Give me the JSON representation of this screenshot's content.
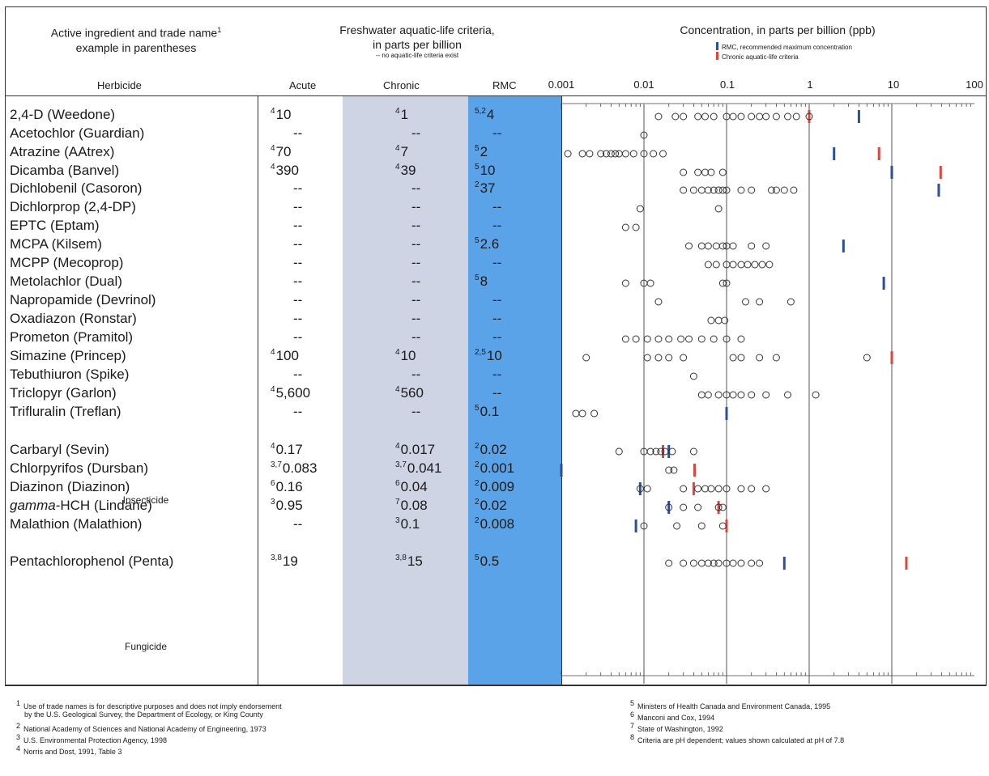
{
  "header": {
    "col1_line1": "Active ingredient and trade name",
    "col1_sup": "1",
    "col1_line2": "example in parentheses",
    "criteria_line1": "Freshwater aquatic-life criteria,",
    "criteria_line2": "in parts per billion",
    "criteria_note": "-- no aquatic-life criteria exist",
    "conc_title": "Concentration, in parts per billion (ppb)",
    "legend_rmc": "RMC, recommended maximum concentration",
    "legend_chronic": "Chronic aquatic-life criteria",
    "sub_herbicide": "Herbicide",
    "sub_acute": "Acute",
    "sub_chronic": "Chronic",
    "sub_rmc": "RMC"
  },
  "colors": {
    "rmc": "#2b4fa0",
    "chronic": "#e0443a",
    "rmc_shade": "#5ba3e8",
    "chronic_shade": "#cfd4e4"
  },
  "groups": {
    "insecticide": "Insecticide",
    "fungicide": "Fungicide"
  },
  "rows": [
    {
      "name": "2,4-D (Weedone)",
      "acute_sup": "4",
      "acute": "10",
      "chronic_sup": "4",
      "chronic": "1",
      "rmc_sup": "5,2",
      "rmc": "4"
    },
    {
      "name": "Acetochlor (Guardian)",
      "acute_sup": "",
      "acute": "--",
      "chronic_sup": "",
      "chronic": "--",
      "rmc_sup": "",
      "rmc": "--"
    },
    {
      "name": "Atrazine (AAtrex)",
      "acute_sup": "4",
      "acute": "70",
      "chronic_sup": "4",
      "chronic": "7",
      "rmc_sup": "5",
      "rmc": "2"
    },
    {
      "name": "Dicamba (Banvel)",
      "acute_sup": "4",
      "acute": "390",
      "chronic_sup": "4",
      "chronic": "39",
      "rmc_sup": "5",
      "rmc": "10"
    },
    {
      "name": "Dichlobenil (Casoron)",
      "acute_sup": "",
      "acute": "--",
      "chronic_sup": "",
      "chronic": "--",
      "rmc_sup": "2",
      "rmc": "37"
    },
    {
      "name": "Dichlorprop (2,4-DP)",
      "acute_sup": "",
      "acute": "--",
      "chronic_sup": "",
      "chronic": "--",
      "rmc_sup": "",
      "rmc": "--"
    },
    {
      "name": "EPTC (Eptam)",
      "acute_sup": "",
      "acute": "--",
      "chronic_sup": "",
      "chronic": "--",
      "rmc_sup": "",
      "rmc": "--"
    },
    {
      "name": "MCPA (Kilsem)",
      "acute_sup": "",
      "acute": "--",
      "chronic_sup": "",
      "chronic": "--",
      "rmc_sup": "5",
      "rmc": "2.6"
    },
    {
      "name": "MCPP (Mecoprop)",
      "acute_sup": "",
      "acute": "--",
      "chronic_sup": "",
      "chronic": "--",
      "rmc_sup": "",
      "rmc": "--"
    },
    {
      "name": "Metolachlor (Dual)",
      "acute_sup": "",
      "acute": "--",
      "chronic_sup": "",
      "chronic": "--",
      "rmc_sup": "5",
      "rmc": "8"
    },
    {
      "name": "Napropamide (Devrinol)",
      "acute_sup": "",
      "acute": "--",
      "chronic_sup": "",
      "chronic": "--",
      "rmc_sup": "",
      "rmc": "--"
    },
    {
      "name": "Oxadiazon (Ronstar)",
      "acute_sup": "",
      "acute": "--",
      "chronic_sup": "",
      "chronic": "--",
      "rmc_sup": "",
      "rmc": "--"
    },
    {
      "name": "Prometon (Pramitol)",
      "acute_sup": "",
      "acute": "--",
      "chronic_sup": "",
      "chronic": "--",
      "rmc_sup": "",
      "rmc": "--"
    },
    {
      "name": "Simazine (Princep)",
      "acute_sup": "4",
      "acute": "100",
      "chronic_sup": "4",
      "chronic": "10",
      "rmc_sup": "2,5",
      "rmc": "10"
    },
    {
      "name": "Tebuthiuron (Spike)",
      "acute_sup": "",
      "acute": "--",
      "chronic_sup": "",
      "chronic": "--",
      "rmc_sup": "",
      "rmc": "--"
    },
    {
      "name": "Triclopyr (Garlon)",
      "acute_sup": "4",
      "acute": "5,600",
      "chronic_sup": "4",
      "chronic": "560",
      "rmc_sup": "",
      "rmc": "--"
    },
    {
      "name": "Trifluralin (Treflan)",
      "acute_sup": "",
      "acute": "--",
      "chronic_sup": "",
      "chronic": "--",
      "rmc_sup": "5",
      "rmc": "0.1"
    },
    {
      "name": "Carbaryl (Sevin)",
      "acute_sup": "4",
      "acute": "0.17",
      "chronic_sup": "4",
      "chronic": "0.017",
      "rmc_sup": "2",
      "rmc": "0.02"
    },
    {
      "name": "Chlorpyrifos (Dursban)",
      "acute_sup": "3,7",
      "acute": "0.083",
      "chronic_sup": "3,7",
      "chronic": "0.041",
      "rmc_sup": "2",
      "rmc": "0.001"
    },
    {
      "name": "Diazinon (Diazinon)",
      "acute_sup": "6",
      "acute": "0.16",
      "chronic_sup": "6",
      "chronic": "0.04",
      "rmc_sup": "2",
      "rmc": "0.009"
    },
    {
      "name_italic": "gamma",
      "name": "-HCH (Lindane)",
      "acute_sup": "3",
      "acute": "0.95",
      "chronic_sup": "7",
      "chronic": "0.08",
      "rmc_sup": "2",
      "rmc": "0.02"
    },
    {
      "name": "Malathion (Malathion)",
      "acute_sup": "",
      "acute": "--",
      "chronic_sup": "3",
      "chronic": "0.1",
      "rmc_sup": "2",
      "rmc": "0.008"
    },
    {
      "name": "Pentachlorophenol (Penta)",
      "acute_sup": "3,8",
      "acute": "19",
      "chronic_sup": "3,8",
      "chronic": "15",
      "rmc_sup": "5",
      "rmc": "0.5"
    }
  ],
  "footnotes_left": [
    {
      "num": "1",
      "text": "Use of trade names is for descriptive purposes and does not imply endorsement"
    },
    {
      "num": "",
      "text": "by the U.S. Geological Survey, the Department of Ecology, or King County"
    },
    {
      "num": "2",
      "text": "National Academy of Sciences and National Academy of Engineering, 1973"
    },
    {
      "num": "3",
      "text": "U.S. Environmental Protection Agency, 1998"
    },
    {
      "num": "4",
      "text": "Norris and Dost, 1991, Table 3"
    }
  ],
  "footnotes_right": [
    {
      "num": "5",
      "text": "Ministers of Health Canada and Environment Canada, 1995"
    },
    {
      "num": "6",
      "text": "Manconi and Cox, 1994"
    },
    {
      "num": "7",
      "text": "State of Washington, 1992"
    },
    {
      "num": "8",
      "text": "Criteria are pH dependent; values shown calculated at pH of 7.8"
    }
  ],
  "chart_data": {
    "type": "scatter",
    "title": "Concentration, in parts per billion (ppb)",
    "xscale": "log",
    "xlim": [
      0.001,
      100
    ],
    "xticks": [
      "0.001",
      "0.01",
      "0.1",
      "1",
      "10",
      "100"
    ],
    "legend": [
      "RMC, recommended maximum concentration",
      "Chronic aquatic-life criteria"
    ],
    "series": [
      {
        "label": "2,4-D (Weedone)",
        "points": [
          0.015,
          0.024,
          0.03,
          0.045,
          0.055,
          0.07,
          0.1,
          0.12,
          0.15,
          0.2,
          0.25,
          0.3,
          0.4,
          0.55,
          0.7,
          1.0
        ],
        "rmc": 4,
        "chronic": 1
      },
      {
        "label": "Acetochlor (Guardian)",
        "points": [
          0.01
        ],
        "rmc": null,
        "chronic": null
      },
      {
        "label": "Atrazine (AAtrex)",
        "points": [
          0.0012,
          0.0018,
          0.0022,
          0.003,
          0.0035,
          0.004,
          0.0045,
          0.005,
          0.006,
          0.0075,
          0.01,
          0.013,
          0.017
        ],
        "rmc": 2,
        "chronic": 7
      },
      {
        "label": "Dicamba (Banvel)",
        "points": [
          0.03,
          0.045,
          0.055,
          0.065,
          0.09
        ],
        "rmc": 10,
        "chronic": 39
      },
      {
        "label": "Dichlobenil (Casoron)",
        "points": [
          0.03,
          0.04,
          0.05,
          0.06,
          0.07,
          0.08,
          0.09,
          0.1,
          0.15,
          0.2,
          0.35,
          0.4,
          0.5,
          0.65
        ],
        "rmc": 37,
        "chronic": null
      },
      {
        "label": "Dichlorprop (2,4-DP)",
        "points": [
          0.009,
          0.08
        ],
        "rmc": null,
        "chronic": null
      },
      {
        "label": "EPTC (Eptam)",
        "points": [
          0.006,
          0.008
        ],
        "rmc": null,
        "chronic": null
      },
      {
        "label": "MCPA (Kilsem)",
        "points": [
          0.035,
          0.05,
          0.06,
          0.075,
          0.09,
          0.1,
          0.12,
          0.2,
          0.3
        ],
        "rmc": 2.6,
        "chronic": null
      },
      {
        "label": "MCPP (Mecoprop)",
        "points": [
          0.06,
          0.075,
          0.1,
          0.12,
          0.15,
          0.18,
          0.22,
          0.27,
          0.33
        ],
        "rmc": null,
        "chronic": null
      },
      {
        "label": "Metolachlor (Dual)",
        "points": [
          0.006,
          0.01,
          0.012,
          0.09,
          0.1
        ],
        "rmc": 8,
        "chronic": null
      },
      {
        "label": "Napropamide (Devrinol)",
        "points": [
          0.015,
          0.17,
          0.25,
          0.6
        ],
        "rmc": null,
        "chronic": null
      },
      {
        "label": "Oxadiazon (Ronstar)",
        "points": [
          0.065,
          0.08,
          0.095
        ],
        "rmc": null,
        "chronic": null
      },
      {
        "label": "Prometon (Pramitol)",
        "points": [
          0.006,
          0.008,
          0.011,
          0.015,
          0.02,
          0.028,
          0.035,
          0.05,
          0.07,
          0.1,
          0.15
        ],
        "rmc": null,
        "chronic": null
      },
      {
        "label": "Simazine (Princep)",
        "points": [
          0.002,
          0.011,
          0.015,
          0.02,
          0.03,
          0.12,
          0.15,
          0.25,
          0.4,
          5
        ],
        "rmc": 10,
        "chronic": 10
      },
      {
        "label": "Tebuthiuron (Spike)",
        "points": [
          0.04
        ],
        "rmc": null,
        "chronic": null
      },
      {
        "label": "Triclopyr (Garlon)",
        "points": [
          0.05,
          0.06,
          0.08,
          0.1,
          0.12,
          0.15,
          0.2,
          0.3,
          0.55,
          1.2
        ],
        "rmc": null,
        "chronic": 560
      },
      {
        "label": "Trifluralin (Treflan)",
        "points": [
          0.0015,
          0.0018,
          0.0025
        ],
        "rmc": 0.1,
        "chronic": null
      },
      {
        "label": "Carbaryl (Sevin)",
        "points": [
          0.005,
          0.01,
          0.012,
          0.014,
          0.016,
          0.018,
          0.022,
          0.04
        ],
        "rmc": 0.02,
        "chronic": 0.017
      },
      {
        "label": "Chlorpyrifos (Dursban)",
        "points": [
          0.02,
          0.023
        ],
        "rmc": 0.001,
        "chronic": 0.041
      },
      {
        "label": "Diazinon (Diazinon)",
        "points": [
          0.009,
          0.011,
          0.03,
          0.045,
          0.055,
          0.065,
          0.08,
          0.1,
          0.15,
          0.2,
          0.3
        ],
        "rmc": 0.009,
        "chronic": 0.04
      },
      {
        "label": "gamma-HCH (Lindane)",
        "points": [
          0.02,
          0.03,
          0.045,
          0.08,
          0.09
        ],
        "rmc": 0.02,
        "chronic": 0.08
      },
      {
        "label": "Malathion (Malathion)",
        "points": [
          0.01,
          0.025,
          0.05,
          0.09
        ],
        "rmc": 0.008,
        "chronic": 0.1
      },
      {
        "label": "Pentachlorophenol (Penta)",
        "points": [
          0.02,
          0.03,
          0.04,
          0.05,
          0.06,
          0.07,
          0.08,
          0.1,
          0.12,
          0.15,
          0.2,
          0.25
        ],
        "rmc": 0.5,
        "chronic": 15
      }
    ]
  }
}
